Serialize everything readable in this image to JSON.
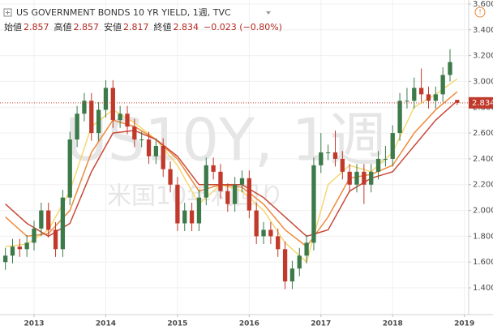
{
  "chart_data": {
    "type": "candlestick",
    "title": "US GOVERNMENT BONDS 10 YR YIELD, 1週, TVC",
    "watermark": "US10Y, 1週",
    "watermark_sub": "米国10年利回り",
    "legend_values": [
      {
        "label": "始値",
        "value": 2.857
      },
      {
        "label": "高値",
        "value": 2.857
      },
      {
        "label": "安値",
        "value": 2.817
      },
      {
        "label": "終値",
        "value": 2.834
      }
    ],
    "change": "−0.023 (−0.80%)",
    "up_color": "#3c7a4a",
    "down_color": "#c0392b",
    "x": [
      2012.6,
      2012.7,
      2012.8,
      2012.9,
      2013.0,
      2013.1,
      2013.2,
      2013.3,
      2013.4,
      2013.5,
      2013.6,
      2013.7,
      2013.8,
      2013.9,
      2014.0,
      2014.1,
      2014.2,
      2014.3,
      2014.4,
      2014.5,
      2014.6,
      2014.7,
      2014.8,
      2014.9,
      2015.0,
      2015.1,
      2015.2,
      2015.3,
      2015.4,
      2015.5,
      2015.6,
      2015.7,
      2015.8,
      2015.9,
      2016.0,
      2016.1,
      2016.2,
      2016.3,
      2016.4,
      2016.5,
      2016.6,
      2016.7,
      2016.8,
      2016.9,
      2017.0,
      2017.1,
      2017.2,
      2017.3,
      2017.4,
      2017.5,
      2017.6,
      2017.7,
      2017.8,
      2017.9,
      2018.0,
      2018.1,
      2018.2,
      2018.3,
      2018.4,
      2018.5,
      2018.6,
      2018.7,
      2018.8,
      2018.9
    ],
    "open": [
      1.6,
      1.65,
      1.72,
      1.7,
      1.75,
      1.86,
      2.0,
      1.85,
      1.7,
      2.1,
      2.55,
      2.75,
      2.85,
      2.6,
      2.78,
      2.95,
      2.7,
      2.75,
      2.65,
      2.55,
      2.55,
      2.42,
      2.5,
      2.32,
      2.2,
      1.9,
      2.0,
      1.9,
      2.1,
      2.35,
      2.3,
      2.15,
      2.05,
      2.2,
      2.25,
      2.0,
      1.8,
      1.85,
      1.8,
      1.7,
      1.45,
      1.55,
      1.65,
      1.75,
      2.35,
      2.45,
      2.45,
      2.4,
      2.3,
      2.2,
      2.3,
      2.2,
      2.3,
      2.4,
      2.4,
      2.6,
      2.85,
      2.85,
      2.95,
      2.9,
      2.85,
      2.9,
      3.05,
      2.857
    ],
    "high": [
      1.71,
      1.78,
      1.78,
      1.81,
      1.92,
      2.06,
      2.06,
      1.91,
      2.16,
      2.61,
      2.81,
      2.91,
      2.91,
      2.84,
      3.01,
      3.01,
      2.81,
      2.81,
      2.71,
      2.61,
      2.61,
      2.56,
      2.56,
      2.38,
      2.26,
      2.06,
      2.06,
      2.16,
      2.41,
      2.41,
      2.36,
      2.21,
      2.26,
      2.31,
      2.31,
      2.06,
      1.91,
      1.91,
      1.86,
      1.76,
      1.61,
      1.71,
      1.81,
      2.41,
      2.6,
      2.51,
      2.62,
      2.46,
      2.36,
      2.36,
      2.36,
      2.36,
      2.46,
      2.5,
      2.66,
      2.91,
      2.95,
      3.03,
      3.1,
      2.96,
      2.96,
      3.11,
      3.25,
      2.857
    ],
    "low": [
      1.54,
      1.59,
      1.64,
      1.64,
      1.69,
      1.8,
      1.79,
      1.64,
      1.64,
      2.04,
      2.49,
      2.69,
      2.54,
      2.54,
      2.72,
      2.64,
      2.64,
      2.59,
      2.49,
      2.49,
      2.36,
      2.36,
      2.26,
      2.14,
      1.84,
      1.84,
      1.84,
      1.84,
      2.04,
      2.24,
      2.09,
      1.99,
      1.99,
      2.14,
      1.94,
      1.74,
      1.74,
      1.74,
      1.64,
      1.39,
      1.39,
      1.49,
      1.59,
      1.69,
      2.29,
      2.39,
      2.34,
      2.24,
      2.14,
      2.14,
      2.05,
      2.14,
      2.24,
      2.34,
      2.34,
      2.54,
      2.79,
      2.79,
      2.84,
      2.79,
      2.79,
      2.84,
      3.0,
      2.817
    ],
    "close": [
      1.65,
      1.72,
      1.7,
      1.75,
      1.86,
      2.0,
      1.85,
      1.7,
      2.1,
      2.55,
      2.75,
      2.85,
      2.6,
      2.78,
      2.95,
      2.7,
      2.75,
      2.65,
      2.55,
      2.55,
      2.42,
      2.5,
      2.32,
      2.2,
      1.9,
      2.0,
      1.9,
      2.1,
      2.35,
      2.3,
      2.15,
      2.05,
      2.2,
      2.25,
      2.0,
      1.8,
      1.85,
      1.8,
      1.7,
      1.45,
      1.55,
      1.65,
      1.75,
      2.35,
      2.45,
      2.45,
      2.4,
      2.3,
      2.2,
      2.3,
      2.2,
      2.3,
      2.4,
      2.4,
      2.6,
      2.85,
      2.85,
      2.95,
      2.9,
      2.85,
      2.9,
      3.05,
      3.15,
      2.834
    ],
    "ribbon_x": [
      2012.6,
      2012.9,
      2013.2,
      2013.5,
      2013.8,
      2014.1,
      2014.4,
      2014.7,
      2015.0,
      2015.3,
      2015.6,
      2015.9,
      2016.2,
      2016.5,
      2016.8,
      2017.1,
      2017.4,
      2017.7,
      2018.0,
      2018.3,
      2018.6,
      2018.9
    ],
    "ribbon": [
      {
        "color": "#f5d76e",
        "values": [
          1.72,
          1.74,
          1.85,
          2.15,
          2.65,
          2.78,
          2.68,
          2.55,
          2.35,
          2.05,
          2.2,
          2.15,
          2.0,
          1.75,
          1.6,
          2.2,
          2.35,
          2.3,
          2.45,
          2.8,
          2.9,
          3.02
        ]
      },
      {
        "color": "#ee8a3c",
        "values": [
          1.95,
          1.8,
          1.82,
          2.0,
          2.45,
          2.7,
          2.65,
          2.55,
          2.4,
          2.15,
          2.2,
          2.18,
          2.05,
          1.85,
          1.72,
          1.95,
          2.25,
          2.28,
          2.35,
          2.6,
          2.78,
          2.92
        ]
      },
      {
        "color": "#c94a3a",
        "values": [
          2.05,
          1.9,
          1.8,
          1.9,
          2.3,
          2.6,
          2.62,
          2.55,
          2.42,
          2.2,
          2.2,
          2.2,
          2.1,
          1.95,
          1.8,
          1.85,
          2.15,
          2.25,
          2.3,
          2.5,
          2.7,
          2.85
        ]
      }
    ],
    "xlim": [
      2012.525,
      2019.06
    ],
    "ylim": [
      1.193,
      3.631
    ],
    "xticks": [
      2013,
      2014,
      2015,
      2016,
      2017,
      2018,
      2019
    ],
    "yticks": [
      {
        "value": 1.4,
        "label": "1.400"
      },
      {
        "value": 1.6,
        "label": "1.600"
      },
      {
        "value": 1.8,
        "label": "1.800"
      },
      {
        "value": 2.0,
        "label": "2.000"
      },
      {
        "value": 2.2,
        "label": "2.200"
      },
      {
        "value": 2.4,
        "label": "2.400"
      },
      {
        "value": 2.6,
        "label": "2.600"
      },
      {
        "value": 2.8,
        "label": "2.800"
      },
      {
        "value": 3.0,
        "label": "3.000"
      },
      {
        "value": 3.2,
        "label": "3.200"
      },
      {
        "value": 3.4,
        "label": "3.400"
      },
      {
        "value": 3.6,
        "label": "3.600"
      }
    ],
    "grid": true
  }
}
